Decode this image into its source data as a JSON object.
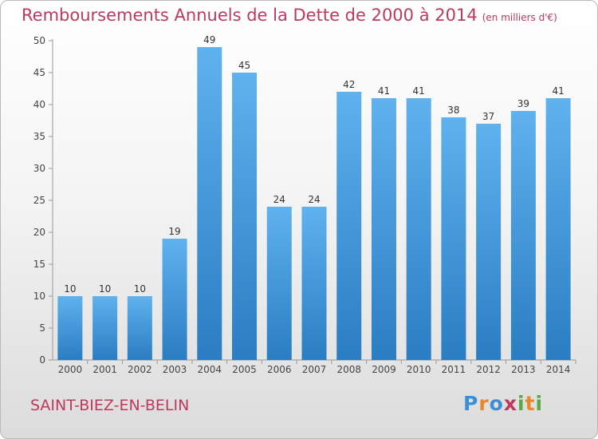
{
  "title": "Remboursements Annuels de la Dette de 2000 à 2014",
  "unit": "(en milliers d'€)",
  "place": "SAINT-BIEZ-EN-BELIN",
  "logo": {
    "letters": [
      "P",
      "r",
      "o",
      "x",
      "i",
      "t",
      "i"
    ],
    "colors": [
      "#3c8fd6",
      "#e8872b",
      "#3c8fd6",
      "#c0395a",
      "#5aa846",
      "#e8872b",
      "#5aa846"
    ]
  },
  "chart_data": {
    "type": "bar",
    "title": "Remboursements Annuels de la Dette de 2000 à 2014",
    "categories": [
      "2000",
      "2001",
      "2002",
      "2003",
      "2004",
      "2005",
      "2006",
      "2007",
      "2008",
      "2009",
      "2010",
      "2011",
      "2012",
      "2013",
      "2014"
    ],
    "values": [
      10,
      10,
      10,
      19,
      49,
      45,
      24,
      24,
      42,
      41,
      41,
      38,
      37,
      39,
      41
    ],
    "ylim": [
      0,
      50
    ],
    "yticks": [
      0,
      5,
      10,
      15,
      20,
      25,
      30,
      35,
      40,
      45,
      50
    ],
    "grid": false,
    "bar_color": "#4aa0e2"
  }
}
